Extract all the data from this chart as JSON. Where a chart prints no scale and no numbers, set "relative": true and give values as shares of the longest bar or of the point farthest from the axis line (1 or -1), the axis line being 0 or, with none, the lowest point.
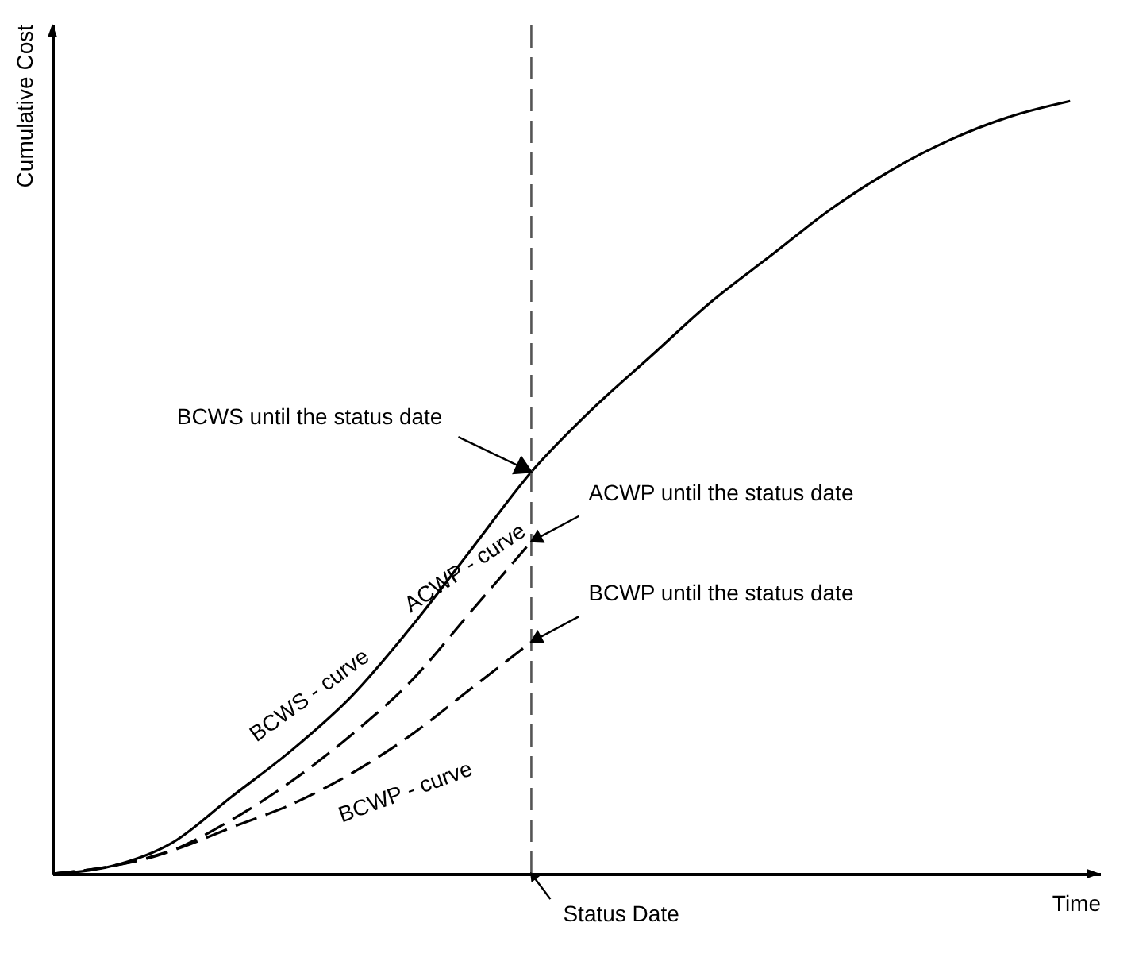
{
  "chart_data": {
    "type": "line",
    "relative": true,
    "xlabel": "Time",
    "ylabel": "Cumulative Cost",
    "grid": false,
    "legend": false,
    "marker": "none",
    "categories": [
      null,
      null,
      null,
      null,
      null,
      null,
      null,
      null,
      null,
      null,
      null,
      null,
      null,
      null,
      null,
      null,
      null,
      null
    ],
    "series": [
      {
        "name": "BCWS - curve",
        "color": "#000000",
        "line_style": "solid",
        "values": [
          0,
          0.01,
          0.04,
          0.1,
          0.16,
          0.23,
          0.32,
          0.42,
          0.52,
          0.6,
          0.67,
          0.74,
          0.8,
          0.86,
          0.91,
          0.95,
          0.98,
          1
        ]
      },
      {
        "name": "ACWP - curve",
        "color": "#000000",
        "line_style": "dashed",
        "values": [
          0,
          0.01,
          0.03,
          0.07,
          0.12,
          0.18,
          0.25,
          0.34,
          0.43,
          null,
          null,
          null,
          null,
          null,
          null,
          null,
          null,
          null
        ]
      },
      {
        "name": "BCWP - curve",
        "color": "#000000",
        "line_style": "dashed",
        "values": [
          0,
          0.01,
          0.03,
          0.06,
          0.09,
          0.13,
          0.18,
          0.24,
          0.3,
          null,
          null,
          null,
          null,
          null,
          null,
          null,
          null,
          null
        ]
      }
    ],
    "annotations": [
      "BCWS until the status date",
      "ACWP until the status date",
      "BCWP until the status date",
      "Status Date"
    ]
  }
}
